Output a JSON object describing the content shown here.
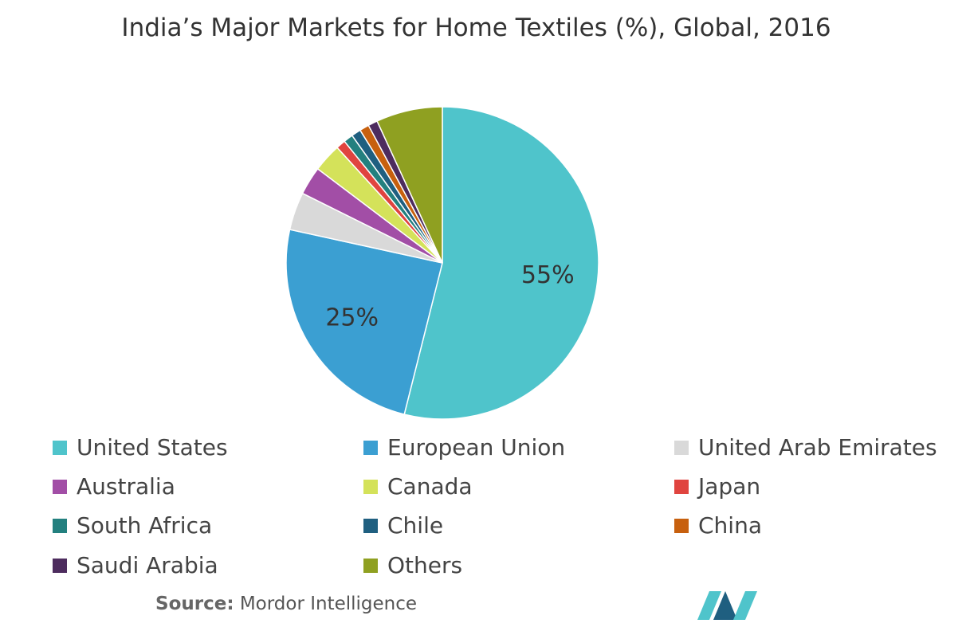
{
  "chart_data": {
    "type": "pie",
    "title": "India’s Major Markets for Home Textiles (%), Global, 2016",
    "categories": [
      "United States",
      "European Union",
      "United Arab Emirates",
      "Australia",
      "Canada",
      "Japan",
      "South Africa",
      "Chile",
      "China",
      "Saudi Arabia",
      "Others"
    ],
    "values": [
      55,
      25,
      4,
      3,
      3,
      1,
      1,
      1,
      1,
      1,
      7
    ],
    "value_labels": [
      "55%",
      "25%",
      null,
      null,
      null,
      null,
      null,
      null,
      null,
      null,
      null
    ],
    "colors": [
      "#4fc4cb",
      "#3b9fd2",
      "#d9d9d9",
      "#a24ea6",
      "#d4e25a",
      "#e0443f",
      "#23807f",
      "#1f5f80",
      "#c7600e",
      "#4d2c5e",
      "#8fa021"
    ],
    "legend": "bottom"
  },
  "source_label": "Source:",
  "source": "Mordor Intelligence"
}
